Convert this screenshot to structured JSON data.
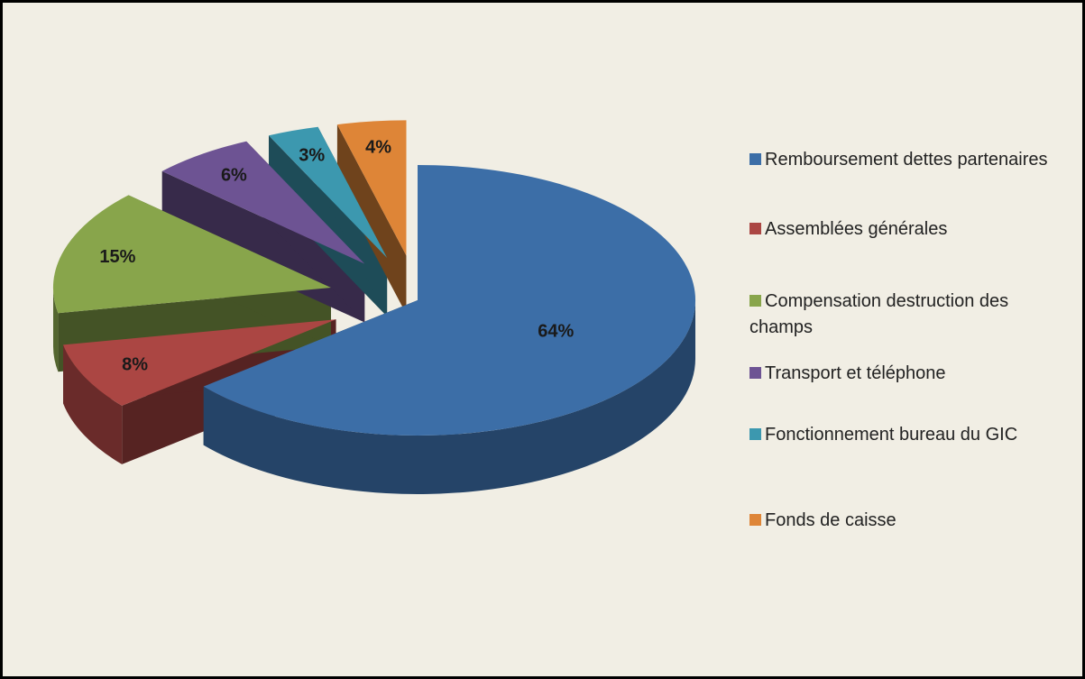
{
  "chart_data": {
    "type": "pie",
    "categories": [
      "Remboursement dettes partenaires",
      "Assemblées générales",
      "Compensation destruction des champs",
      "Transport et téléphone",
      "Fonctionnement bureau du GIC",
      "Fonds de caisse"
    ],
    "values": [
      64,
      8,
      15,
      6,
      3,
      4
    ],
    "value_labels": [
      "64%",
      "8%",
      "15%",
      "6%",
      "3%",
      "4%"
    ],
    "colors": [
      "#3c6ea7",
      "#ab4643",
      "#88a54b",
      "#6d5393",
      "#3c98af",
      "#de8537"
    ],
    "legend": "right"
  }
}
